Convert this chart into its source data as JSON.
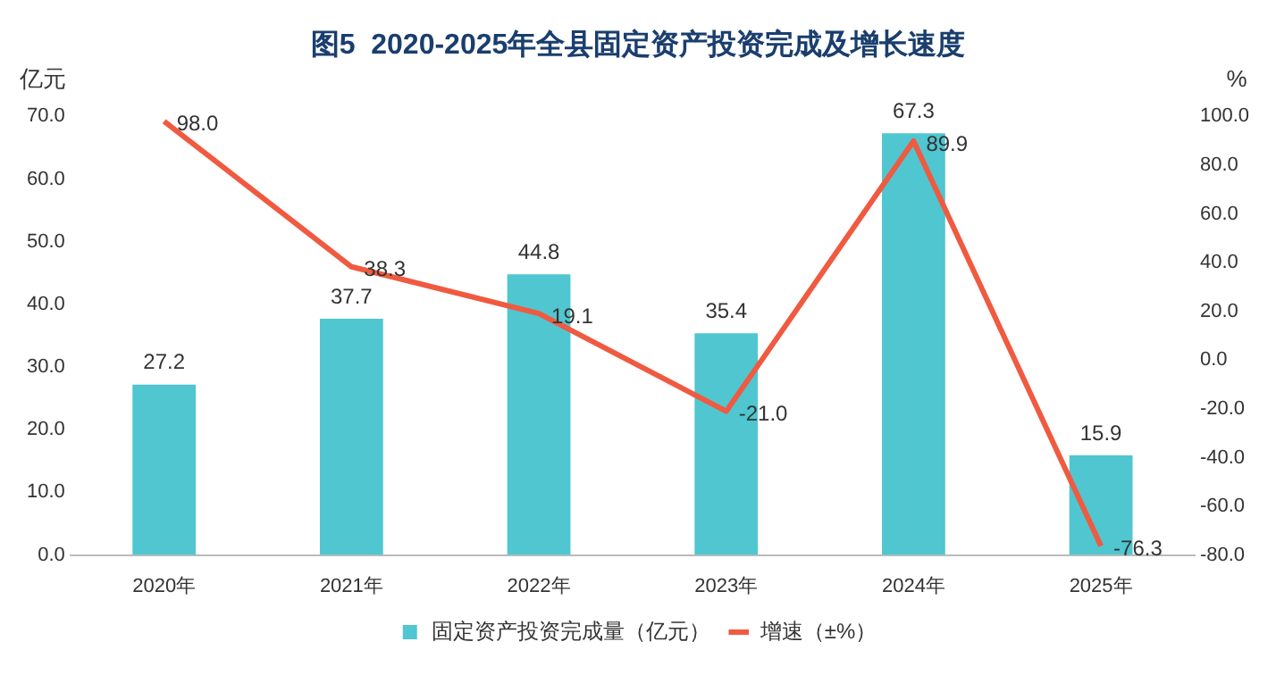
{
  "chart_data": {
    "type": "bar",
    "title": "图5  2020-2025年全县固定资产投资完成及增长速度",
    "ylabel": "亿元",
    "y2label": "%",
    "categories": [
      "2020年",
      "2021年",
      "2022年",
      "2023年",
      "2024年",
      "2025年"
    ],
    "series": [
      {
        "name": "固定资产投资完成量（亿元）",
        "color": "#4fc6d0",
        "values": [
          27.2,
          37.7,
          44.8,
          35.4,
          67.3,
          15.9
        ],
        "value_labels": [
          "27.2",
          "37.7",
          "44.8",
          "35.4",
          "67.3",
          "15.9"
        ]
      },
      {
        "name": "增速（±%）",
        "type": "line",
        "axis": "y2",
        "color": "#f05a40",
        "values": [
          98.0,
          38.3,
          19.1,
          -21.0,
          89.9,
          -76.3
        ],
        "value_labels": [
          "98.0",
          "38.3",
          "19.1",
          "-21.0",
          "89.9",
          "-76.3"
        ]
      }
    ],
    "ylim": [
      0,
      70
    ],
    "yticks": [
      {
        "value": 0,
        "label": "0.0"
      },
      {
        "value": 10,
        "label": "10.0"
      },
      {
        "value": 20,
        "label": "20.0"
      },
      {
        "value": 30,
        "label": "30.0"
      },
      {
        "value": 40,
        "label": "40.0"
      },
      {
        "value": 50,
        "label": "50.0"
      },
      {
        "value": 60,
        "label": "60.0"
      },
      {
        "value": 70,
        "label": "70.0"
      }
    ],
    "y2lim": [
      -80,
      100
    ],
    "y2ticks": [
      {
        "value": -80,
        "label": "-80.0"
      },
      {
        "value": -60,
        "label": "-60.0"
      },
      {
        "value": -40,
        "label": "-40.0"
      },
      {
        "value": -20,
        "label": "-20.0"
      },
      {
        "value": 0,
        "label": "0.0"
      },
      {
        "value": 20,
        "label": "20.0"
      },
      {
        "value": 40,
        "label": "40.0"
      },
      {
        "value": 60,
        "label": "60.0"
      },
      {
        "value": 80,
        "label": "80.0"
      },
      {
        "value": 100,
        "label": "100.0"
      }
    ],
    "grid": false,
    "legend": "bottom",
    "marker": "none",
    "line_style": "solid"
  }
}
